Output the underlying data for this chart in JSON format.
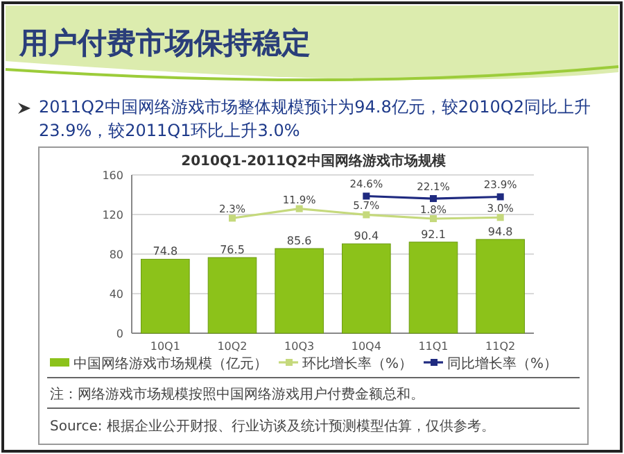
{
  "chart_data": {
    "type": "bar",
    "title": "2010Q1-2011Q2中国网络游戏市场规模",
    "annotations": [
      "用户付费市场保持稳定",
      "2011Q2中国网络游戏市场整体规模预计为94.8亿元，较2010Q2同比上升23.9%，较2011Q1环比上升3.0%",
      "注：网络游戏市场规模按照中国网络游戏用户付费金额总和。",
      "Source: 根据企业公开财报、行业访谈及统计预测模型估算，仅供参考。"
    ],
    "categories": [
      "10Q1",
      "10Q2",
      "10Q3",
      "10Q4",
      "11Q1",
      "11Q2"
    ],
    "series": [
      {
        "name": "中国网络游戏市场规模（亿元）",
        "color": "#8cc21a",
        "values": [
          74.8,
          76.5,
          85.6,
          90.4,
          92.1,
          94.8
        ],
        "value_labels": [
          "74.8",
          "76.5",
          "85.6",
          "90.4",
          "92.1",
          "94.8"
        ]
      },
      {
        "name": "环比增长率（%）",
        "type": "line",
        "axis": "y2",
        "color": "#c5d97c",
        "values": [
          null,
          2.3,
          11.9,
          5.7,
          1.8,
          3.0
        ],
        "value_labels": [
          null,
          "2.3%",
          "11.9%",
          "5.7%",
          "1.8%",
          "3.0%"
        ]
      },
      {
        "name": "同比增长率（%）",
        "type": "line",
        "axis": "y2",
        "color": "#1f2a80",
        "values": [
          null,
          null,
          null,
          24.6,
          22.1,
          23.9
        ],
        "value_labels": [
          null,
          null,
          null,
          "24.6%",
          "22.1%",
          "23.9%"
        ]
      }
    ],
    "ylim": [
      0,
      160
    ],
    "yticks": [
      0,
      40,
      80,
      120,
      160
    ],
    "y2lim": [
      -114,
      46
    ],
    "grid": "y",
    "legend": "bottom",
    "marker": "square"
  }
}
